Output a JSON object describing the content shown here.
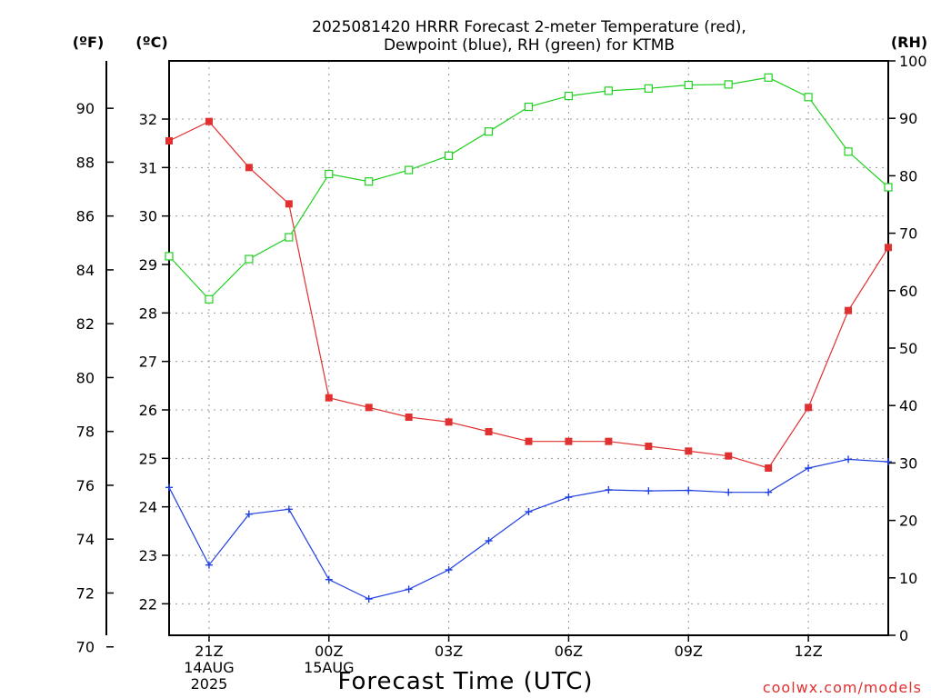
{
  "chart_data": {
    "type": "line",
    "title_line1": "2025081420 HRRR Forecast 2-meter Temperature (red),",
    "title_line2": "Dewpoint (blue), RH (green) for KTMB",
    "xlabel": "Forecast Time (UTC)",
    "credit": "coolwx.com/models",
    "units": {
      "f": "(ºF)",
      "c": "(ºC)",
      "rh": "(RH)"
    },
    "hours": [
      20,
      21,
      22,
      23,
      24,
      25,
      26,
      27,
      28,
      29,
      30,
      31,
      32,
      33,
      34,
      35,
      36,
      37,
      38
    ],
    "x_ticks": [
      {
        "hour": 21,
        "lines": [
          "21Z",
          "14AUG",
          "2025"
        ]
      },
      {
        "hour": 24,
        "lines": [
          "00Z",
          "15AUG"
        ]
      },
      {
        "hour": 27,
        "lines": [
          "03Z"
        ]
      },
      {
        "hour": 30,
        "lines": [
          "06Z"
        ]
      },
      {
        "hour": 33,
        "lines": [
          "09Z"
        ]
      },
      {
        "hour": 36,
        "lines": [
          "12Z"
        ]
      }
    ],
    "xlim": [
      20,
      38
    ],
    "celsius_ylim": [
      21.35,
      33.2
    ],
    "celsius_ticks": [
      22,
      23,
      24,
      25,
      26,
      27,
      28,
      29,
      30,
      31,
      32
    ],
    "fahrenheit_ticks": [
      70,
      72,
      74,
      76,
      78,
      80,
      82,
      84,
      86,
      88,
      90
    ],
    "rh_ylim": [
      0,
      100
    ],
    "rh_ticks": [
      0,
      10,
      20,
      30,
      40,
      50,
      60,
      70,
      80,
      90,
      100
    ],
    "grid": true,
    "series": [
      {
        "name": "Temperature",
        "axis": "celsius",
        "color": "#e03030",
        "marker": "filled-square",
        "values": [
          31.55,
          31.95,
          31.0,
          30.25,
          26.25,
          26.05,
          25.85,
          25.75,
          25.55,
          25.35,
          25.35,
          25.35,
          25.25,
          25.15,
          25.05,
          24.8,
          26.05,
          28.05,
          29.35
        ]
      },
      {
        "name": "Dewpoint",
        "axis": "celsius",
        "color": "#2040e0",
        "marker": "plus",
        "values": [
          24.4,
          22.8,
          23.85,
          23.95,
          22.5,
          22.1,
          22.3,
          22.7,
          23.3,
          23.9,
          24.2,
          24.35,
          24.33,
          24.34,
          24.3,
          24.3,
          24.8,
          24.98,
          24.93
        ]
      },
      {
        "name": "RH",
        "axis": "rh",
        "color": "#20d020",
        "marker": "open-square",
        "values": [
          66,
          58.5,
          65.5,
          69.3,
          80.3,
          79,
          81,
          83.5,
          87.7,
          92,
          93.9,
          94.8,
          95.2,
          95.8,
          95.9,
          97.1,
          93.7,
          84.2,
          78
        ]
      }
    ]
  }
}
